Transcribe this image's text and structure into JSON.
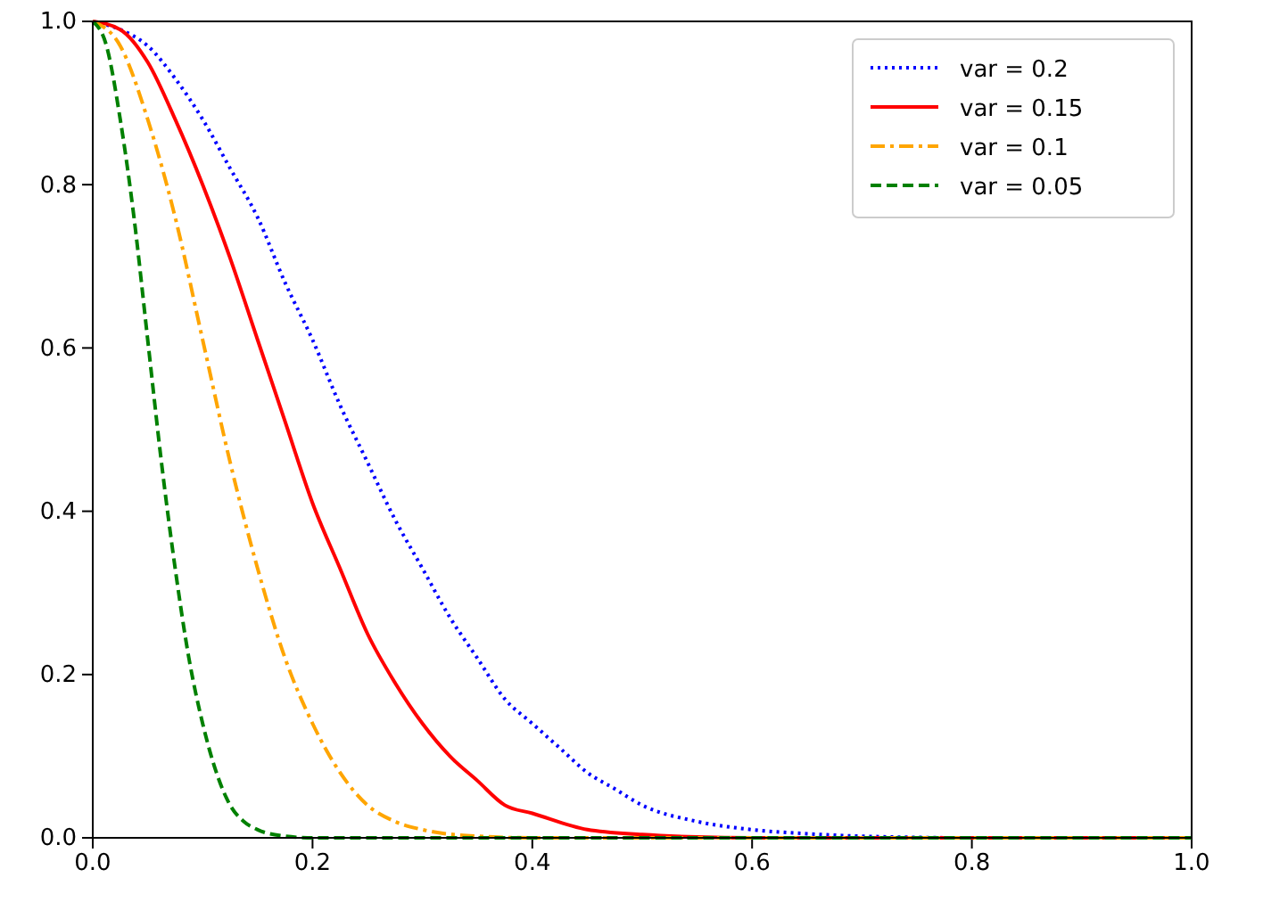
{
  "chart_data": {
    "type": "line",
    "xlim": [
      0,
      1
    ],
    "ylim": [
      0,
      1
    ],
    "xticks": [
      {
        "value": 0,
        "label": "0.0"
      },
      {
        "value": 0.2,
        "label": "0.2"
      },
      {
        "value": 0.4,
        "label": "0.4"
      },
      {
        "value": 0.6,
        "label": "0.6"
      },
      {
        "value": 0.8,
        "label": "0.8"
      },
      {
        "value": 1,
        "label": "1.0"
      }
    ],
    "yticks": [
      {
        "value": 0,
        "label": "0.0"
      },
      {
        "value": 0.2,
        "label": "0.2"
      },
      {
        "value": 0.4,
        "label": "0.4"
      },
      {
        "value": 0.6,
        "label": "0.6"
      },
      {
        "value": 0.8,
        "label": "0.8"
      },
      {
        "value": 1,
        "label": "1.0"
      }
    ],
    "grid": false,
    "legend": "top right",
    "marker": "none",
    "series": [
      {
        "name": "var = 0.2",
        "color": "#0000ff",
        "line_style": "dotted",
        "x": [
          0,
          0.025,
          0.05,
          0.075,
          0.1,
          0.125,
          0.15,
          0.175,
          0.2,
          0.225,
          0.25,
          0.275,
          0.3,
          0.325,
          0.35,
          0.375,
          0.4,
          0.425,
          0.45,
          0.475,
          0.5,
          0.55,
          0.6,
          0.65,
          0.7,
          0.8,
          1
        ],
        "values": [
          1,
          0.99,
          0.97,
          0.93,
          0.88,
          0.82,
          0.76,
          0.68,
          0.61,
          0.53,
          0.46,
          0.39,
          0.33,
          0.27,
          0.22,
          0.17,
          0.14,
          0.11,
          0.08,
          0.06,
          0.04,
          0.02,
          0.01,
          0.005,
          0.002,
          0,
          0
        ]
      },
      {
        "name": "var = 0.15",
        "color": "#ff0000",
        "line_style": "solid",
        "x": [
          0,
          0.025,
          0.05,
          0.075,
          0.1,
          0.125,
          0.15,
          0.175,
          0.2,
          0.225,
          0.25,
          0.275,
          0.3,
          0.325,
          0.35,
          0.375,
          0.4,
          0.45,
          0.5,
          0.55,
          0.6,
          1
        ],
        "values": [
          1,
          0.99,
          0.95,
          0.88,
          0.8,
          0.71,
          0.61,
          0.51,
          0.41,
          0.33,
          0.25,
          0.19,
          0.14,
          0.1,
          0.07,
          0.04,
          0.03,
          0.01,
          0.004,
          0.001,
          0,
          0
        ]
      },
      {
        "name": "var = 0.1",
        "color": "#ffa500",
        "line_style": "dashdot",
        "x": [
          0,
          0.025,
          0.05,
          0.075,
          0.1,
          0.125,
          0.15,
          0.175,
          0.2,
          0.225,
          0.25,
          0.275,
          0.3,
          0.35,
          0.4,
          1
        ],
        "values": [
          1,
          0.97,
          0.88,
          0.76,
          0.61,
          0.46,
          0.33,
          0.22,
          0.14,
          0.08,
          0.04,
          0.02,
          0.01,
          0.002,
          0,
          0
        ]
      },
      {
        "name": "var = 0.05",
        "color": "#008000",
        "line_style": "dashed",
        "x": [
          0,
          0.0125,
          0.025,
          0.0375,
          0.05,
          0.0625,
          0.075,
          0.0875,
          0.1,
          0.1125,
          0.125,
          0.1375,
          0.15,
          0.175,
          0.2,
          1
        ],
        "values": [
          1,
          0.97,
          0.88,
          0.76,
          0.61,
          0.46,
          0.33,
          0.22,
          0.14,
          0.08,
          0.04,
          0.02,
          0.01,
          0.002,
          0,
          0
        ]
      }
    ]
  }
}
